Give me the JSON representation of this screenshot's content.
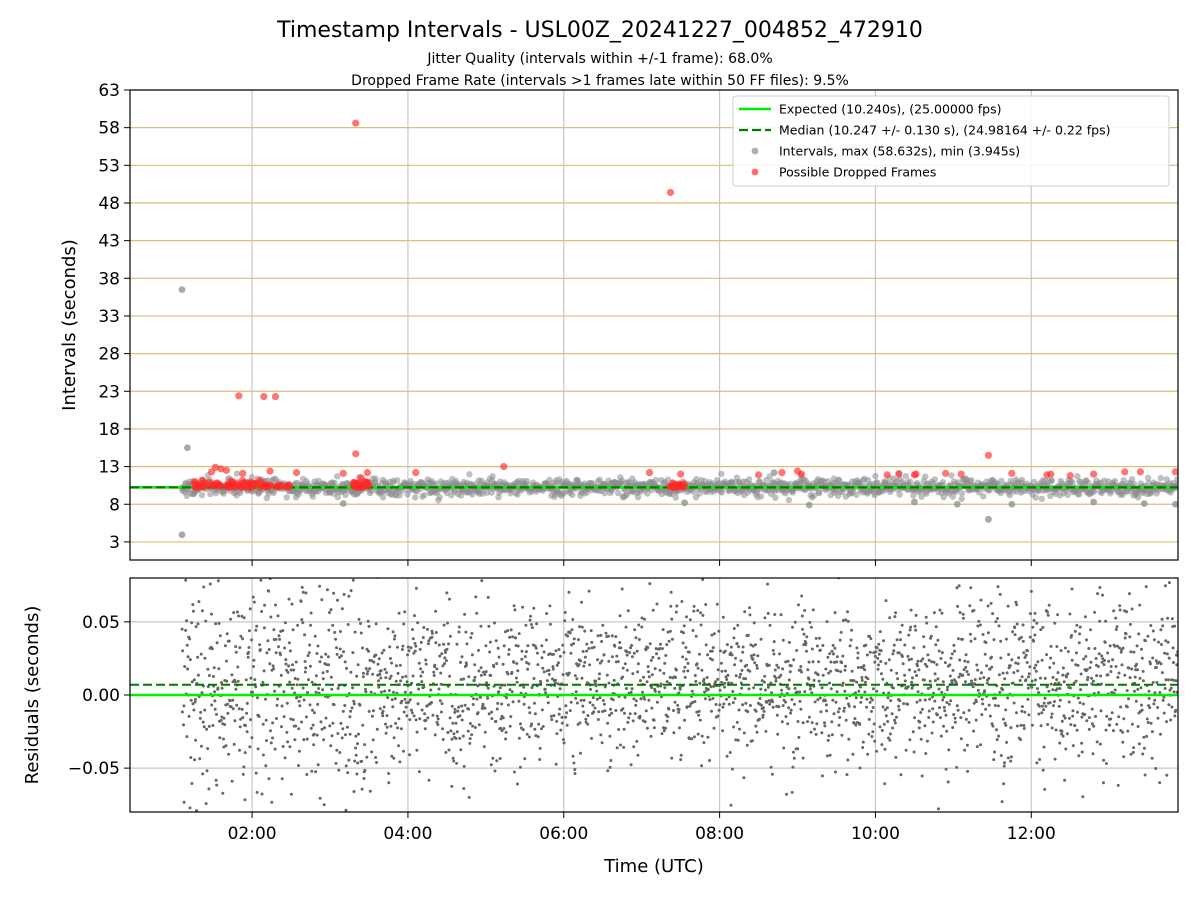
{
  "title": "Timestamp Intervals - USL00Z_20241227_004852_472910",
  "subtitle_lines": [
    "Jitter Quality (intervals within +/-1 frame): 68.0%",
    "Dropped Frame Rate (intervals >1 frames late within 50 FF files): 9.5%"
  ],
  "colors": {
    "expected": "#00ee00",
    "median": "#007a00",
    "intervals": "#8c8c8c",
    "dropped": "#ff2a2a",
    "hgrid_top": "#d9bf77",
    "grid": "#c8c8c8",
    "residual": "#666666"
  },
  "chart_data": [
    {
      "type": "scatter",
      "ylabel": "Intervals (seconds)",
      "ylim": [
        0.6,
        63
      ],
      "yticks": [
        3,
        8,
        13,
        18,
        23,
        28,
        33,
        38,
        43,
        48,
        53,
        58,
        63
      ],
      "ytick_labels": [
        "3",
        "8",
        "13",
        "18",
        "23",
        "28",
        "33",
        "38",
        "43",
        "48",
        "53",
        "58",
        "63"
      ],
      "xlim": [
        0.433,
        13.883
      ],
      "xticks": [
        2,
        4,
        6,
        8,
        10,
        12
      ],
      "grid": true,
      "legend_position": "top-right",
      "legend": [
        {
          "label": "Expected (10.240s), (25.00000 fps)",
          "kind": "line-solid"
        },
        {
          "label": "Median (10.247 +/- 0.130 s), (24.98164 +/- 0.22 fps)",
          "kind": "line-dashed"
        },
        {
          "label": "Intervals, max (58.632s), min (3.945s)",
          "kind": "marker-gray"
        },
        {
          "label": "Possible Dropped Frames",
          "kind": "marker-red"
        }
      ],
      "expected_value": 10.24,
      "median_value": 10.247,
      "series": [
        {
          "name": "Possible Dropped Frames",
          "points": [
            [
              3.33,
              58.6
            ],
            [
              7.37,
              49.4
            ],
            [
              1.83,
              22.4
            ],
            [
              2.15,
              22.3
            ],
            [
              2.3,
              22.3
            ],
            [
              3.33,
              14.7
            ],
            [
              11.45,
              14.5
            ],
            [
              5.23,
              13.0
            ],
            [
              1.53,
              12.9
            ],
            [
              1.6,
              12.7
            ],
            [
              1.67,
              12.5
            ],
            [
              1.48,
              12.3
            ],
            [
              1.88,
              12.1
            ],
            [
              2.23,
              12.4
            ],
            [
              2.57,
              12.2
            ],
            [
              3.17,
              12.1
            ],
            [
              3.48,
              12.2
            ],
            [
              4.1,
              12.2
            ],
            [
              7.1,
              12.2
            ],
            [
              7.5,
              12.0
            ],
            [
              8.5,
              11.9
            ],
            [
              8.8,
              12.2
            ],
            [
              9.0,
              12.4
            ],
            [
              9.05,
              12.0
            ],
            [
              10.15,
              11.9
            ],
            [
              10.3,
              12.0
            ],
            [
              10.5,
              11.9
            ],
            [
              10.52,
              12.0
            ],
            [
              10.9,
              12.1
            ],
            [
              11.1,
              12.0
            ],
            [
              11.75,
              12.1
            ],
            [
              12.2,
              11.9
            ],
            [
              12.25,
              12.0
            ],
            [
              12.5,
              11.8
            ],
            [
              12.8,
              12.0
            ],
            [
              13.2,
              12.3
            ],
            [
              13.4,
              12.3
            ],
            [
              13.85,
              12.3
            ],
            [
              1.27,
              11.0
            ],
            [
              1.36,
              11.2
            ],
            [
              1.45,
              10.9
            ],
            [
              1.73,
              11.1
            ],
            [
              2.05,
              10.8
            ],
            [
              3.4,
              11.5
            ],
            [
              3.45,
              11.0
            ],
            [
              7.48,
              10.7
            ],
            [
              7.52,
              10.6
            ]
          ]
        }
      ],
      "annotations": []
    },
    {
      "type": "scatter",
      "ylabel": "Residuals (seconds)",
      "xlabel": "Time (UTC)",
      "ylim": [
        -0.08,
        0.08
      ],
      "yticks": [
        -0.05,
        0.0,
        0.05
      ],
      "ytick_labels": [
        "−0.05",
        "0.00",
        "0.05"
      ],
      "xlim": [
        0.433,
        13.883
      ],
      "xticks": [
        2,
        4,
        6,
        8,
        10,
        12
      ],
      "xtick_labels": [
        "02:00",
        "04:00",
        "06:00",
        "08:00",
        "10:00",
        "12:00"
      ],
      "grid": true,
      "expected_residual": 0.0,
      "median_residual": 0.007,
      "series": [
        {
          "name": "Residuals",
          "x_range": [
            1.1,
            13.883
          ],
          "y_spread": 0.08
        }
      ]
    }
  ]
}
